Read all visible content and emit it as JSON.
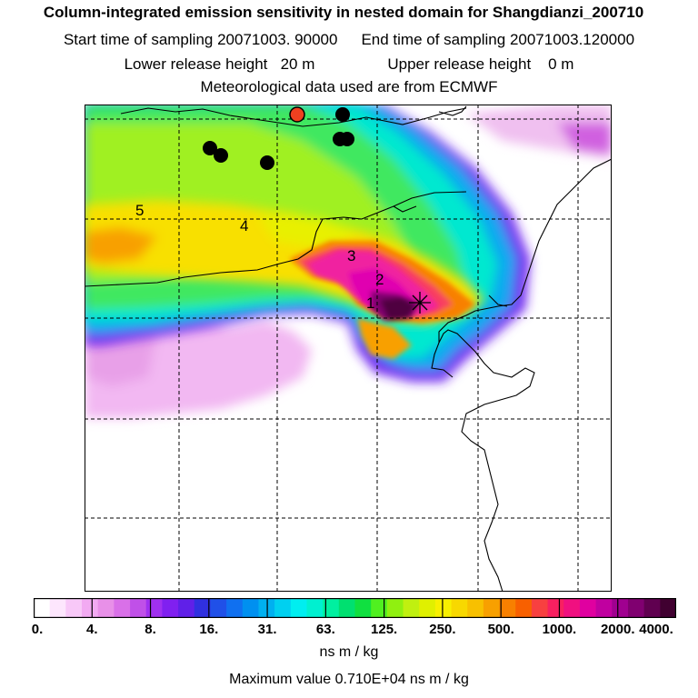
{
  "header": {
    "title": "Column-integrated emission sensitivity in nested domain for Shangdianzi_200710",
    "start_label": "Start time of sampling",
    "start_value": "20071003. 90000",
    "end_label": "End time of sampling",
    "end_value": "20071003.120000",
    "lower_label": "Lower release height",
    "lower_value": "20 m",
    "upper_label": "Upper release height",
    "upper_value": "0 m",
    "met_text": "Meteorological data used are from ECMWF"
  },
  "colorbar": {
    "ticks": [
      "0.",
      "4.",
      "8.",
      "16.",
      "31.",
      "63.",
      "125.",
      "250.",
      "500.",
      "1000.",
      "2000.",
      "4000."
    ],
    "colors": [
      "#ffffff",
      "#fde6fd",
      "#f8c8f8",
      "#f2aaf2",
      "#e890e8",
      "#d970e8",
      "#c050e8",
      "#a030f0",
      "#8020f0",
      "#6020e8",
      "#3030e0",
      "#2050e8",
      "#1070f0",
      "#0090f0",
      "#00b0f0",
      "#00d0f0",
      "#00eef0",
      "#00f0d0",
      "#00f0a0",
      "#00e070",
      "#10e040",
      "#50f020",
      "#90f010",
      "#c0f010",
      "#e0f000",
      "#f8f000",
      "#f8d800",
      "#f8c000",
      "#f8a000",
      "#f88000",
      "#f86000",
      "#f84040",
      "#f82060",
      "#f01080",
      "#e000a0",
      "#c000a0",
      "#a00090",
      "#800070",
      "#600050",
      "#400030"
    ],
    "units": "ns m / kg",
    "max_text": "Maximum value  0.710E+04 ns m / kg"
  },
  "map": {
    "labels": [
      "1",
      "2",
      "3",
      "4",
      "5"
    ]
  }
}
